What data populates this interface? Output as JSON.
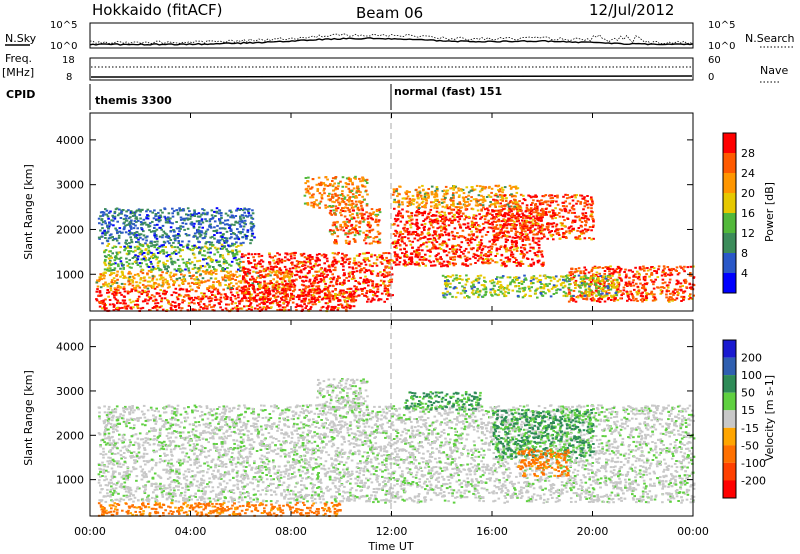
{
  "header": {
    "station": "Hokkaido (fitACF)",
    "beam": "Beam 06",
    "date": "12/Jul/2012"
  },
  "strips": {
    "nsky_label": "N.Sky",
    "nsky_ticks": [
      "10^5",
      "10^0"
    ],
    "nsky_right_ticks": [
      "10^5",
      "10^0"
    ],
    "nsearch_label": "N.Search",
    "freq_label": "Freq.",
    "freq_unit": "[MHz]",
    "freq_ticks": [
      "18",
      "8"
    ],
    "nave_label": "Nave",
    "nave_ticks": [
      "60",
      "0"
    ],
    "cpid_label": "CPID",
    "cpid_modes": [
      "themis 3300",
      "normal (fast) 151"
    ]
  },
  "chart_data": [
    {
      "type": "heatmap",
      "panel": "power",
      "ylabel": "Slant Range [km]",
      "ylim": [
        180,
        4600
      ],
      "yticks": [
        1000,
        2000,
        3000,
        4000
      ],
      "xlim": [
        0,
        24
      ],
      "colorbar_label": "Power [dB]",
      "colorbar_ticks": [
        "4",
        "8",
        "12",
        "16",
        "20",
        "24",
        "28"
      ],
      "colors": [
        "#0000ff",
        "#2a58c8",
        "#3c8c5a",
        "#52b83a",
        "#e6c800",
        "#ff9600",
        "#ff5a00",
        "#ff0000"
      ],
      "bands": [
        {
          "t": [
            0.2,
            10.5
          ],
          "r": [
            200,
            700
          ],
          "value": 28
        },
        {
          "t": [
            0.2,
            8.0
          ],
          "r": [
            700,
            1100
          ],
          "value": 20
        },
        {
          "t": [
            0.5,
            6.0
          ],
          "r": [
            1100,
            1700
          ],
          "value": 12
        },
        {
          "t": [
            0.3,
            6.5
          ],
          "r": [
            1700,
            2500
          ],
          "value": 6
        },
        {
          "t": [
            6.0,
            12.0
          ],
          "r": [
            400,
            1500
          ],
          "value": 28
        },
        {
          "t": [
            9.5,
            11.5
          ],
          "r": [
            1700,
            2500
          ],
          "value": 24
        },
        {
          "t": [
            8.5,
            11.0
          ],
          "r": [
            2500,
            3200
          ],
          "value": 22
        },
        {
          "t": [
            12.0,
            18.0
          ],
          "r": [
            1200,
            2500
          ],
          "value": 28
        },
        {
          "t": [
            16.0,
            20.0
          ],
          "r": [
            1800,
            2800
          ],
          "value": 26
        },
        {
          "t": [
            19.0,
            24.0
          ],
          "r": [
            400,
            1200
          ],
          "value": 26
        },
        {
          "t": [
            12.0,
            17.0
          ],
          "r": [
            2500,
            3000
          ],
          "value": 20
        },
        {
          "t": [
            14.0,
            21.0
          ],
          "r": [
            500,
            1000
          ],
          "value": 14
        }
      ]
    },
    {
      "type": "heatmap",
      "panel": "velocity",
      "ylabel": "Slant Range [km]",
      "ylim": [
        180,
        4600
      ],
      "yticks": [
        1000,
        2000,
        3000,
        4000
      ],
      "xlim": [
        0,
        24
      ],
      "colorbar_label": "Velocity [m s-1]",
      "colorbar_ticks": [
        "200",
        "100",
        "50",
        "15",
        "-15",
        "-50",
        "-100",
        "-200"
      ],
      "colors": [
        "#1a1ad0",
        "#2f5fb0",
        "#2e8b57",
        "#5fd040",
        "#c8c8c8",
        "#ffa500",
        "#ff7000",
        "#ff4000",
        "#ff0000"
      ],
      "bands": [
        {
          "t": [
            0.3,
            24.0
          ],
          "r": [
            500,
            2700
          ],
          "value": 0
        },
        {
          "t": [
            0.3,
            10.0
          ],
          "r": [
            200,
            500
          ],
          "value": -40
        },
        {
          "t": [
            16.0,
            20.0
          ],
          "r": [
            1500,
            2600
          ],
          "value": 40
        },
        {
          "t": [
            17.0,
            19.0
          ],
          "r": [
            1100,
            1700
          ],
          "value": -40
        },
        {
          "t": [
            9.0,
            11.0
          ],
          "r": [
            2600,
            3300
          ],
          "value": 0
        },
        {
          "t": [
            12.5,
            15.5
          ],
          "r": [
            2600,
            3000
          ],
          "value": 40
        }
      ]
    }
  ],
  "xaxis": {
    "ticks": [
      "00:00",
      "04:00",
      "08:00",
      "12:00",
      "16:00",
      "20:00",
      "00:00"
    ],
    "label": "Time UT"
  }
}
